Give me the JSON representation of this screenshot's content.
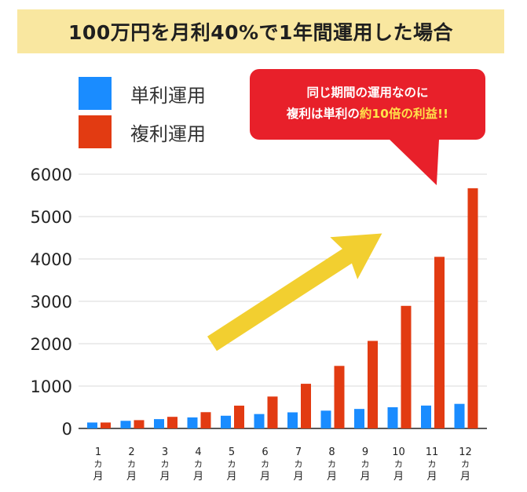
{
  "title": "100万円を月利40%で1年間運用した場合",
  "callout": {
    "line1": "同じ期間の運用なのに",
    "line2_prefix": "複利は単利の",
    "line2_highlight": "約10倍の利益!!"
  },
  "colors": {
    "simple": "#1a8cff",
    "compound": "#e23b12",
    "arrow": "#f2cf30",
    "callout": "#e8202a"
  },
  "chart_data": {
    "type": "bar",
    "categories": [
      "1カ月",
      "2カ月",
      "3カ月",
      "4カ月",
      "5カ月",
      "6カ月",
      "7カ月",
      "8カ月",
      "9カ月",
      "10カ月",
      "11カ月",
      "12カ月"
    ],
    "category_numbers": [
      "1",
      "2",
      "3",
      "4",
      "5",
      "6",
      "7",
      "8",
      "9",
      "10",
      "11",
      "12"
    ],
    "category_suffix": [
      "カ",
      "月"
    ],
    "series": [
      {
        "name": "単利運用",
        "values": [
          140,
          180,
          220,
          260,
          300,
          340,
          380,
          420,
          460,
          500,
          540,
          580
        ]
      },
      {
        "name": "複利運用",
        "values": [
          140,
          196,
          274,
          384,
          538,
          753,
          1054,
          1476,
          2066,
          2893,
          4050,
          5669
        ]
      }
    ],
    "yticks": [
      "0",
      "1000",
      "2000",
      "3000",
      "4000",
      "5000",
      "6000"
    ],
    "ylim": [
      0,
      6000
    ],
    "grid": true,
    "legend_position": "top-left"
  }
}
